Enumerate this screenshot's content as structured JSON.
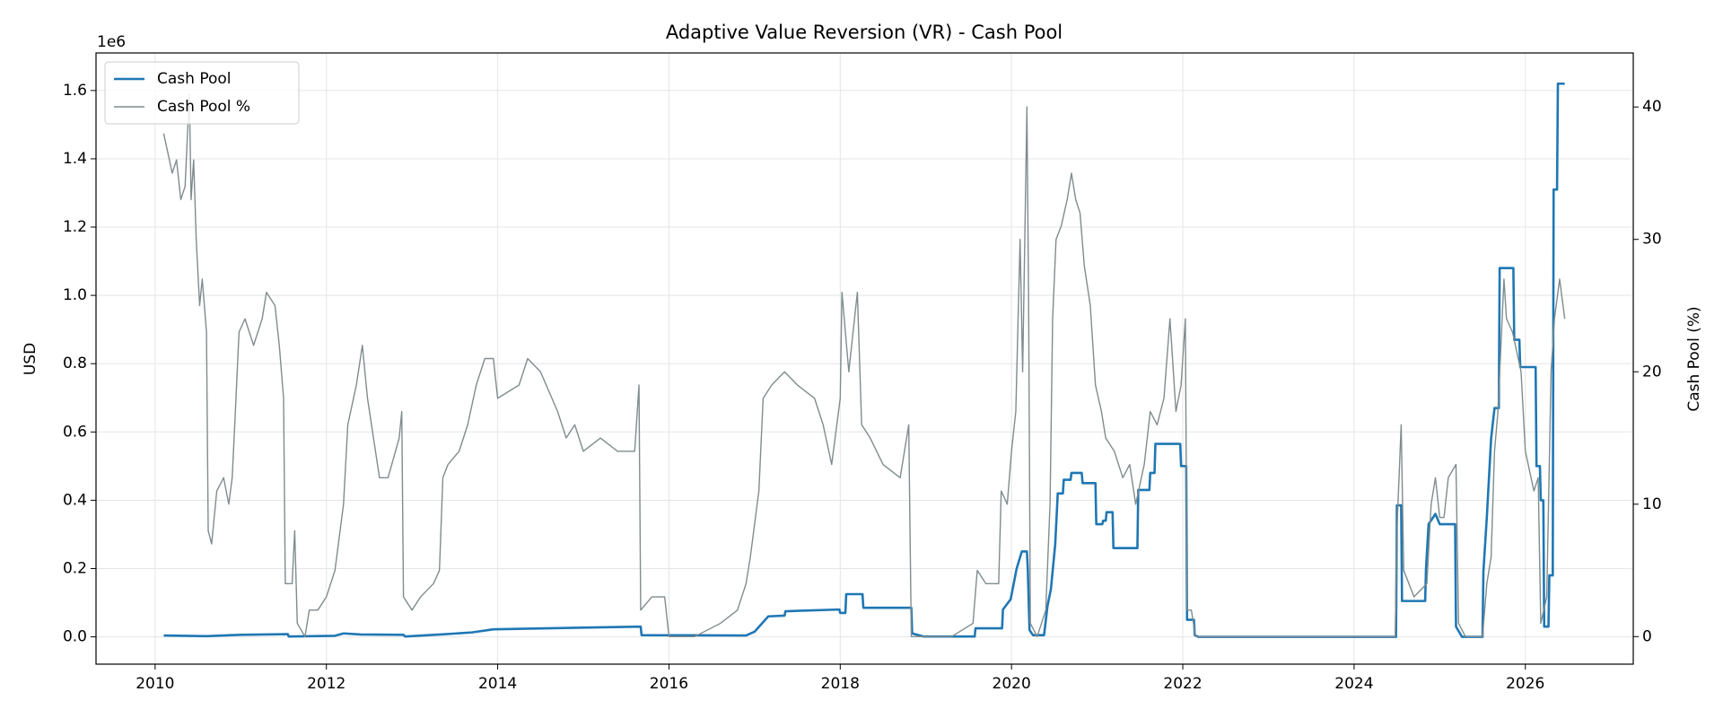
{
  "chart_data": {
    "type": "line",
    "title": "Adaptive Value Reversion (VR) - Cash Pool",
    "ylabel": "USD",
    "y2label": "Cash Pool (%)",
    "y_offset_label": "1e6",
    "xlim": [
      2009.31,
      2027.26
    ],
    "xticks": [
      2010,
      2012,
      2014,
      2016,
      2018,
      2020,
      2022,
      2024,
      2026
    ],
    "ylim": [
      -80000,
      1710000
    ],
    "yticks": [
      {
        "value": 0,
        "label": "0.0"
      },
      {
        "value": 200000,
        "label": "0.2"
      },
      {
        "value": 400000,
        "label": "0.4"
      },
      {
        "value": 600000,
        "label": "0.6"
      },
      {
        "value": 800000,
        "label": "0.8"
      },
      {
        "value": 1000000,
        "label": "1.0"
      },
      {
        "value": 1200000,
        "label": "1.2"
      },
      {
        "value": 1400000,
        "label": "1.4"
      },
      {
        "value": 1600000,
        "label": "1.6"
      }
    ],
    "y2lim": [
      -2.08,
      44.08
    ],
    "y2ticks": [
      0,
      10,
      20,
      30,
      40
    ],
    "grid": true,
    "legend": "upper left",
    "series": [
      {
        "name": "Cash Pool",
        "color": "#1f77b4",
        "x": [
          2010.1,
          2010.6,
          2011.0,
          2011.55,
          2011.56,
          2012.1,
          2012.2,
          2012.4,
          2012.9,
          2012.92,
          2013.4,
          2013.7,
          2013.95,
          2015.67,
          2015.68,
          2016.9,
          2017.0,
          2017.16,
          2017.35,
          2017.36,
          2017.99,
          2018.0,
          2018.06,
          2018.07,
          2018.26,
          2018.27,
          2018.83,
          2018.84,
          2018.97,
          2019.57,
          2019.58,
          2019.89,
          2019.9,
          2019.99,
          2020.06,
          2020.12,
          2020.18,
          2020.19,
          2020.21,
          2020.25,
          2020.38,
          2020.42,
          2020.46,
          2020.51,
          2020.54,
          2020.6,
          2020.61,
          2020.69,
          2020.7,
          2020.82,
          2020.83,
          2020.98,
          2020.99,
          2021.06,
          2021.07,
          2021.1,
          2021.11,
          2021.18,
          2021.19,
          2021.47,
          2021.48,
          2021.61,
          2021.62,
          2021.67,
          2021.68,
          2021.97,
          2021.98,
          2022.04,
          2022.05,
          2022.13,
          2022.14,
          2022.18,
          2024.49,
          2024.5,
          2024.55,
          2024.56,
          2024.83,
          2024.84,
          2024.87,
          2024.95,
          2025.0,
          2025.18,
          2025.19,
          2025.26,
          2025.5,
          2025.51,
          2025.55,
          2025.6,
          2025.64,
          2025.69,
          2025.7,
          2025.86,
          2025.87,
          2025.93,
          2025.94,
          2026.12,
          2026.13,
          2026.17,
          2026.18,
          2026.21,
          2026.22,
          2026.27,
          2026.28,
          2026.32,
          2026.33,
          2026.37,
          2026.38,
          2026.46
        ],
        "values": [
          4000,
          2000,
          6000,
          8000,
          1000,
          3000,
          10000,
          7000,
          6000,
          1000,
          8000,
          13000,
          22000,
          30000,
          5000,
          4000,
          15000,
          60000,
          62000,
          75000,
          80000,
          70000,
          70000,
          125000,
          125000,
          85000,
          85000,
          10000,
          1000,
          1000,
          25000,
          25000,
          80000,
          110000,
          200000,
          250000,
          250000,
          200000,
          20000,
          5000,
          5000,
          90000,
          140000,
          270000,
          420000,
          420000,
          460000,
          460000,
          480000,
          480000,
          450000,
          450000,
          330000,
          330000,
          340000,
          340000,
          365000,
          365000,
          260000,
          260000,
          430000,
          430000,
          480000,
          480000,
          565000,
          565000,
          500000,
          500000,
          50000,
          50000,
          5000,
          0,
          0,
          385000,
          385000,
          105000,
          105000,
          200000,
          330000,
          360000,
          330000,
          330000,
          30000,
          0,
          0,
          190000,
          350000,
          580000,
          670000,
          670000,
          1080000,
          1080000,
          870000,
          870000,
          790000,
          790000,
          500000,
          500000,
          400000,
          400000,
          30000,
          30000,
          180000,
          180000,
          1310000,
          1310000,
          1620000,
          1620000
        ]
      },
      {
        "name": "Cash Pool %",
        "color": "#7f8c8d",
        "axis": "y2",
        "x": [
          2010.1,
          2010.2,
          2010.25,
          2010.3,
          2010.35,
          2010.4,
          2010.42,
          2010.45,
          2010.48,
          2010.52,
          2010.55,
          2010.6,
          2010.62,
          2010.66,
          2010.72,
          2010.8,
          2010.86,
          2010.9,
          2010.93,
          2010.98,
          2011.05,
          2011.15,
          2011.25,
          2011.3,
          2011.4,
          2011.45,
          2011.5,
          2011.52,
          2011.6,
          2011.63,
          2011.66,
          2011.75,
          2011.8,
          2011.9,
          2012.0,
          2012.1,
          2012.2,
          2012.25,
          2012.35,
          2012.42,
          2012.48,
          2012.55,
          2012.62,
          2012.72,
          2012.85,
          2012.88,
          2012.9,
          2013.0,
          2013.1,
          2013.25,
          2013.32,
          2013.36,
          2013.42,
          2013.55,
          2013.65,
          2013.75,
          2013.85,
          2013.95,
          2014.0,
          2014.25,
          2014.35,
          2014.5,
          2014.7,
          2014.8,
          2014.9,
          2015.0,
          2015.2,
          2015.4,
          2015.6,
          2015.65,
          2015.67,
          2015.8,
          2015.95,
          2016.0,
          2016.3,
          2016.6,
          2016.8,
          2016.9,
          2016.95,
          2017.05,
          2017.1,
          2017.2,
          2017.35,
          2017.5,
          2017.7,
          2017.8,
          2017.9,
          2018.0,
          2018.02,
          2018.1,
          2018.2,
          2018.25,
          2018.35,
          2018.5,
          2018.7,
          2018.8,
          2018.83,
          2018.95,
          2019.3,
          2019.55,
          2019.6,
          2019.7,
          2019.85,
          2019.88,
          2019.95,
          2020.0,
          2020.05,
          2020.1,
          2020.13,
          2020.18,
          2020.2,
          2020.22,
          2020.3,
          2020.4,
          2020.45,
          2020.48,
          2020.52,
          2020.58,
          2020.65,
          2020.7,
          2020.75,
          2020.8,
          2020.85,
          2020.92,
          2020.98,
          2021.05,
          2021.1,
          2021.2,
          2021.3,
          2021.38,
          2021.45,
          2021.55,
          2021.62,
          2021.7,
          2021.78,
          2021.85,
          2021.92,
          2021.98,
          2022.03,
          2022.05,
          2022.1,
          2022.15,
          2024.48,
          2024.5,
          2024.55,
          2024.58,
          2024.7,
          2024.85,
          2024.9,
          2024.95,
          2025.0,
          2025.05,
          2025.1,
          2025.19,
          2025.22,
          2025.3,
          2025.5,
          2025.55,
          2025.6,
          2025.64,
          2025.68,
          2025.75,
          2025.78,
          2025.85,
          2025.95,
          2026.0,
          2026.1,
          2026.15,
          2026.18,
          2026.25,
          2026.3,
          2026.34,
          2026.4,
          2026.46
        ],
        "values": [
          38,
          35,
          36,
          33,
          34,
          41,
          33,
          36,
          30,
          25,
          27,
          23,
          8,
          7,
          11,
          12,
          10,
          12,
          16,
          23,
          24,
          22,
          24,
          26,
          25,
          22,
          18,
          4,
          4,
          8,
          1,
          0,
          2,
          2,
          3,
          5,
          10,
          16,
          19,
          22,
          18,
          15,
          12,
          12,
          15,
          17,
          3,
          2,
          3,
          4,
          5,
          12,
          13,
          14,
          16,
          19,
          21,
          21,
          18,
          19,
          21,
          20,
          17,
          15,
          16,
          14,
          15,
          14,
          14,
          19,
          2,
          3,
          3,
          0,
          0,
          1,
          2,
          4,
          6,
          11,
          18,
          19,
          20,
          19,
          18,
          16,
          13,
          18,
          26,
          20,
          26,
          16,
          15,
          13,
          12,
          16,
          0,
          0,
          0,
          1,
          5,
          4,
          4,
          11,
          10,
          14,
          17,
          30,
          20,
          40,
          25,
          1,
          0,
          2,
          10,
          24,
          30,
          31,
          33,
          35,
          33,
          32,
          28,
          25,
          19,
          17,
          15,
          14,
          12,
          13,
          10,
          13,
          17,
          16,
          18,
          24,
          17,
          19,
          24,
          2,
          2,
          0,
          0,
          8,
          16,
          5,
          3,
          4,
          10,
          12,
          9,
          9,
          12,
          13,
          1,
          0,
          0,
          4,
          6,
          14,
          17,
          27,
          24,
          23,
          20,
          14,
          11,
          12,
          1,
          3,
          20,
          24,
          27,
          24
        ]
      }
    ]
  }
}
